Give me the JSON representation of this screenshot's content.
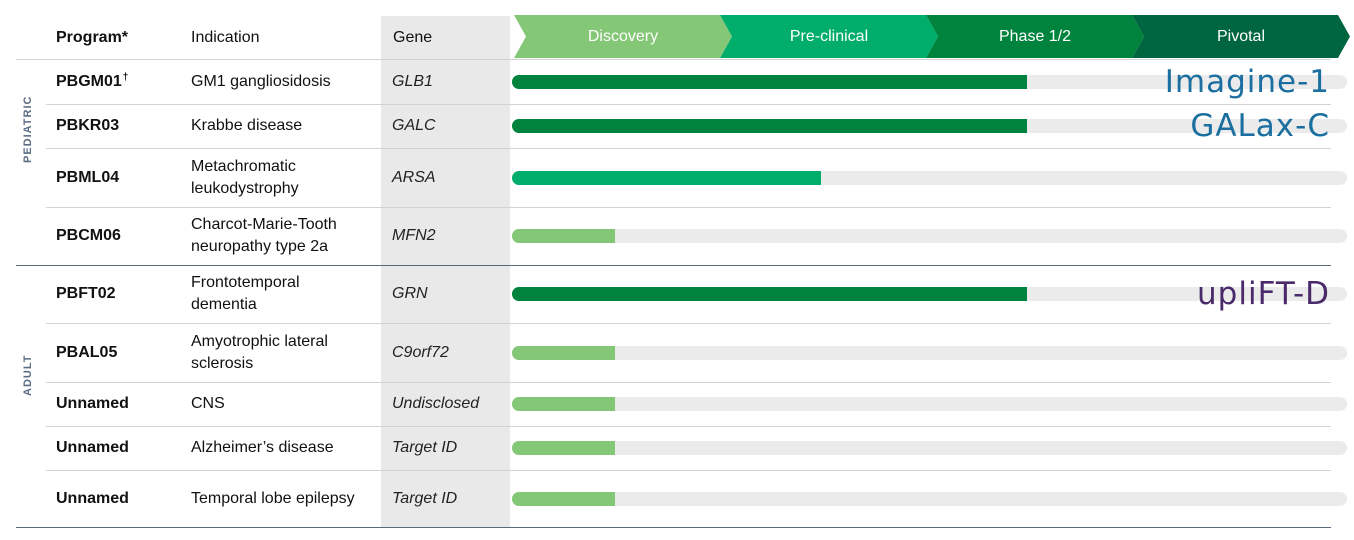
{
  "chart_data": {
    "type": "bar",
    "headers": {
      "program": "Program*",
      "indication": "Indication",
      "gene": "Gene"
    },
    "stages": [
      {
        "label": "Discovery",
        "color": "#84c776"
      },
      {
        "label": "Pre-clinical",
        "color": "#00ad6a"
      },
      {
        "label": "Phase 1/2",
        "color": "#00843d"
      },
      {
        "label": "Pivotal",
        "color": "#006640"
      }
    ],
    "groups": [
      {
        "label": "PEDIATRIC",
        "rows": [
          0,
          1,
          2,
          3
        ]
      },
      {
        "label": "ADULT",
        "rows": [
          4,
          5,
          6,
          7,
          8
        ]
      }
    ],
    "rows": [
      {
        "program": "PBGM01",
        "dagger": "†",
        "indication": "GM1 gangliosidosis",
        "gene": "GLB1",
        "progress_stages": 2.5,
        "stage": "Phase 1/2",
        "logo": "Imagine-1",
        "logo_color": "#1a6fa0"
      },
      {
        "program": "PBKR03",
        "indication": "Krabbe disease",
        "gene": "GALC",
        "progress_stages": 2.5,
        "stage": "Phase 1/2",
        "logo": "GALax-C",
        "logo_color": "#1a6fa0"
      },
      {
        "program": "PBML04",
        "indication": "Metachromatic leukodystrophy",
        "gene": "ARSA",
        "progress_stages": 1.5,
        "stage": "Pre-clinical"
      },
      {
        "program": "PBCM06",
        "indication": "Charcot-Marie-Tooth neuropathy type 2a",
        "gene": "MFN2",
        "progress_stages": 0.5,
        "stage": "Discovery"
      },
      {
        "program": "PBFT02",
        "indication": "Frontotemporal dementia",
        "gene": "GRN",
        "progress_stages": 2.5,
        "stage": "Phase 1/2",
        "logo": "upliFT-D",
        "logo_color": "#4a2a6a"
      },
      {
        "program": "PBAL05",
        "indication": "Amyotrophic lateral sclerosis",
        "gene": "C9orf72",
        "progress_stages": 0.5,
        "stage": "Discovery"
      },
      {
        "program": "Unnamed",
        "indication": "CNS",
        "gene": "Undisclosed",
        "progress_stages": 0.5,
        "stage": "Discovery"
      },
      {
        "program": "Unnamed",
        "indication": "Alzheimer’s disease",
        "gene": "Target ID",
        "progress_stages": 0.5,
        "stage": "Discovery"
      },
      {
        "program": "Unnamed",
        "indication": "Temporal lobe epilepsy",
        "gene": "Target ID",
        "progress_stages": 0.5,
        "stage": "Discovery"
      }
    ]
  }
}
